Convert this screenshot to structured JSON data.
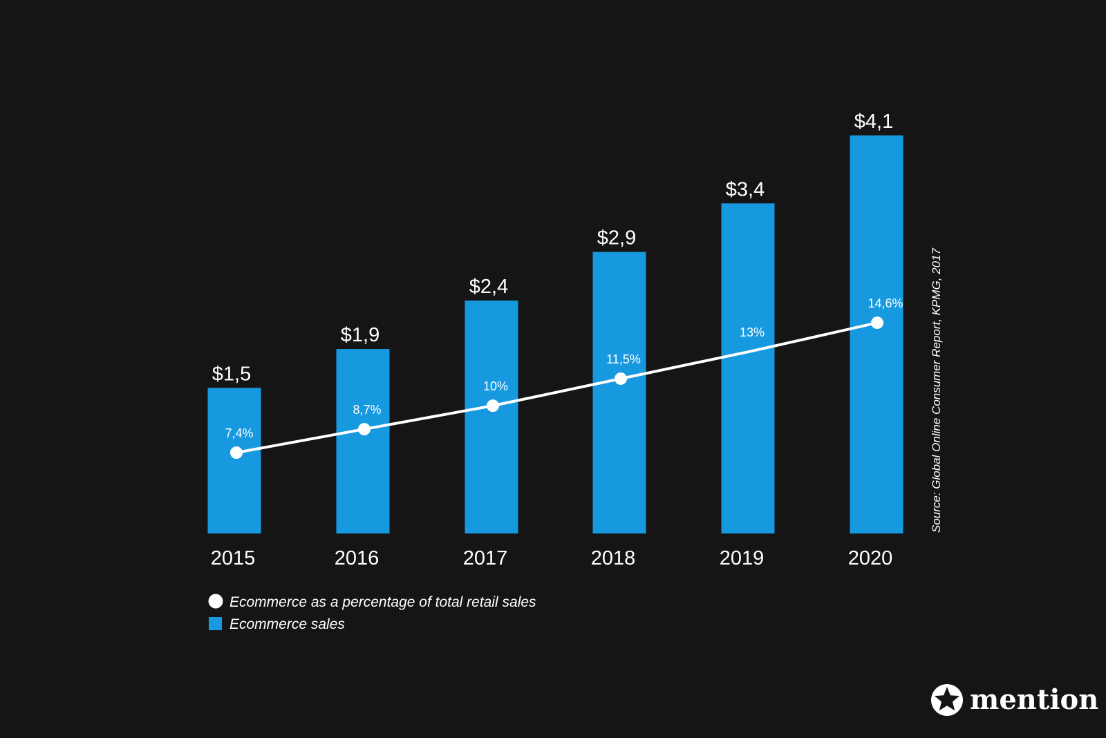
{
  "chart_data": {
    "type": "bar",
    "categories": [
      "2015",
      "2016",
      "2017",
      "2018",
      "2019",
      "2020"
    ],
    "series": [
      {
        "name": "Ecommerce sales",
        "type": "bar",
        "values": [
          1.5,
          1.9,
          2.4,
          2.9,
          3.4,
          4.1
        ],
        "value_labels": [
          "$1,5",
          "$1,9",
          "$2,4",
          "$2,9",
          "$3,4",
          "$4,1"
        ],
        "color": "#1799df"
      },
      {
        "name": "Ecommerce as a percentage of total retail sales",
        "type": "line",
        "values": [
          7.4,
          8.7,
          10,
          11.5,
          13,
          14.6
        ],
        "value_labels": [
          "7,4%",
          "8,7%",
          "10%",
          "11,5%",
          "13%",
          "14,6%"
        ],
        "color": "#ffffff"
      }
    ],
    "legend": {
      "position": "bottom-left",
      "entries": [
        {
          "label": "Ecommerce as a percentage of total retail sales",
          "marker": "circle",
          "color": "#ffffff"
        },
        {
          "label": "Ecommerce sales",
          "marker": "square",
          "color": "#1799df"
        }
      ]
    },
    "grid": false,
    "source": "Source: Global Online Consumer Report, KPMG, 2017"
  },
  "brand": {
    "name": "mention",
    "icon": "star-icon"
  },
  "colors": {
    "background": "#151515",
    "bar": "#1799df",
    "line": "#ffffff"
  }
}
